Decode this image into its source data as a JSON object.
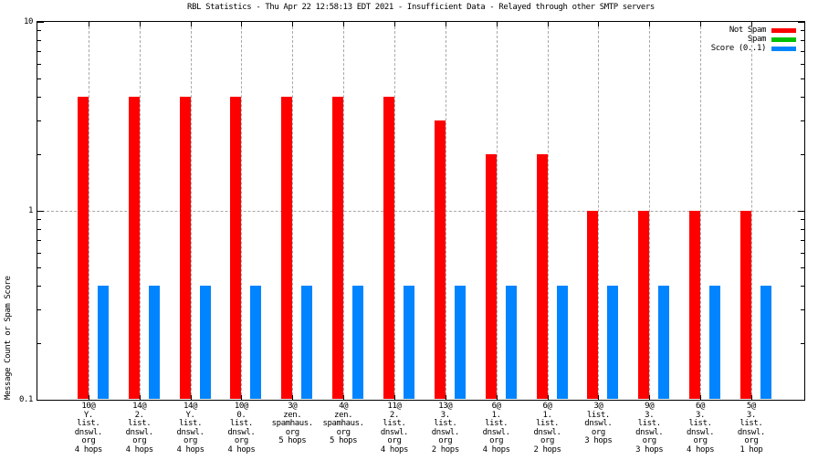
{
  "chart_data": {
    "type": "bar",
    "title": "RBL Statistics - Thu Apr 22 12:58:13 EDT 2021 - Insufficient Data - Relayed through other SMTP servers",
    "ylabel": "Message Count or Spam Score",
    "yscale": "log",
    "ylim": [
      0.1,
      10
    ],
    "ytick_labels": [
      {
        "value": 10,
        "label": "10"
      },
      {
        "value": 1,
        "label": "1"
      },
      {
        "value": 0.1,
        "label": "0.1"
      }
    ],
    "grid": {
      "horizontal_dashed_line_at": 1,
      "vertical_dashed_line_per_category": true
    },
    "legend_position": "top-right-inside",
    "background_color": "#ffffff",
    "grid_color": "#a8a8a8",
    "categories": [
      [
        "10@",
        "Y.",
        "list.",
        "dnswl.",
        "org",
        "4 hops"
      ],
      [
        "14@",
        "2.",
        "list.",
        "dnswl.",
        "org",
        "4 hops"
      ],
      [
        "14@",
        "Y.",
        "list.",
        "dnswl.",
        "org",
        "4 hops"
      ],
      [
        "10@",
        "0.",
        "list.",
        "dnswl.",
        "org",
        "4 hops"
      ],
      [
        "3@",
        "zen.",
        "spamhaus.",
        "org",
        "5 hops"
      ],
      [
        "4@",
        "zen.",
        "spamhaus.",
        "org",
        "5 hops"
      ],
      [
        "11@",
        "2.",
        "list.",
        "dnswl.",
        "org",
        "4 hops"
      ],
      [
        "13@",
        "3.",
        "list.",
        "dnswl.",
        "org",
        "2 hops"
      ],
      [
        "6@",
        "1.",
        "list.",
        "dnswl.",
        "org",
        "4 hops"
      ],
      [
        "6@",
        "1.",
        "list.",
        "dnswl.",
        "org",
        "2 hops"
      ],
      [
        "3@",
        "list.",
        "dnswl.",
        "org",
        "3 hops"
      ],
      [
        "9@",
        "3.",
        "list.",
        "dnswl.",
        "org",
        "3 hops"
      ],
      [
        "6@",
        "3.",
        "list.",
        "dnswl.",
        "org",
        "4 hops"
      ],
      [
        "5@",
        "3.",
        "list.",
        "dnswl.",
        "org",
        "1 hop"
      ]
    ],
    "series": [
      {
        "name": "Not Spam",
        "color": "#ff0000",
        "values": [
          4,
          4,
          4,
          4,
          4,
          4,
          4,
          3,
          2,
          2,
          1,
          1,
          1,
          1
        ]
      },
      {
        "name": "Spam",
        "color": "#00c000",
        "values": [
          0,
          0,
          0,
          0,
          0,
          0,
          0,
          0,
          0,
          0,
          0,
          0,
          0,
          0
        ]
      },
      {
        "name": "Score (0..1)",
        "color": "#0084ff",
        "values": [
          0.4,
          0.4,
          0.4,
          0.4,
          0.4,
          0.4,
          0.4,
          0.4,
          0.4,
          0.4,
          0.4,
          0.4,
          0.4,
          0.4
        ]
      }
    ]
  }
}
